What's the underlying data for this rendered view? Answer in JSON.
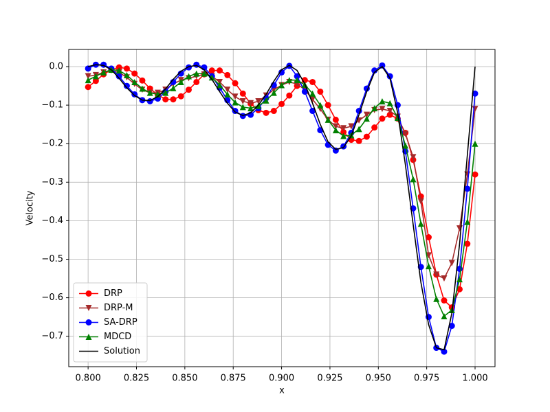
{
  "chart_data": {
    "type": "line",
    "xlabel": "x",
    "ylabel": "Velocity",
    "x": [
      0.8,
      0.804,
      0.808,
      0.812,
      0.816,
      0.82,
      0.824,
      0.828,
      0.832,
      0.836,
      0.84,
      0.844,
      0.848,
      0.852,
      0.856,
      0.86,
      0.864,
      0.868,
      0.872,
      0.876,
      0.88,
      0.884,
      0.888,
      0.892,
      0.896,
      0.9,
      0.904,
      0.908,
      0.912,
      0.916,
      0.92,
      0.924,
      0.928,
      0.932,
      0.936,
      0.94,
      0.944,
      0.948,
      0.952,
      0.956,
      0.96,
      0.964,
      0.968,
      0.972,
      0.976,
      0.98,
      0.984,
      0.988,
      0.992,
      0.996,
      1.0
    ],
    "series": [
      {
        "name": "DRP",
        "color": "#ff0000",
        "marker": "circle",
        "values": [
          -0.053,
          -0.037,
          -0.02,
          -0.008,
          -0.002,
          -0.005,
          -0.018,
          -0.036,
          -0.057,
          -0.073,
          -0.085,
          -0.085,
          -0.077,
          -0.06,
          -0.04,
          -0.02,
          -0.01,
          -0.01,
          -0.022,
          -0.043,
          -0.07,
          -0.096,
          -0.113,
          -0.12,
          -0.115,
          -0.097,
          -0.075,
          -0.05,
          -0.035,
          -0.04,
          -0.065,
          -0.1,
          -0.138,
          -0.17,
          -0.19,
          -0.193,
          -0.182,
          -0.158,
          -0.135,
          -0.125,
          -0.135,
          -0.172,
          -0.242,
          -0.337,
          -0.443,
          -0.54,
          -0.607,
          -0.625,
          -0.578,
          -0.46,
          -0.28
        ]
      },
      {
        "name": "DRP-M",
        "color": "#a52a2a",
        "marker": "triangle-down",
        "values": [
          -0.025,
          -0.022,
          -0.015,
          -0.01,
          -0.015,
          -0.028,
          -0.045,
          -0.06,
          -0.068,
          -0.068,
          -0.06,
          -0.045,
          -0.035,
          -0.03,
          -0.025,
          -0.02,
          -0.025,
          -0.04,
          -0.06,
          -0.078,
          -0.09,
          -0.095,
          -0.09,
          -0.075,
          -0.06,
          -0.048,
          -0.04,
          -0.045,
          -0.06,
          -0.085,
          -0.11,
          -0.138,
          -0.155,
          -0.16,
          -0.155,
          -0.14,
          -0.125,
          -0.113,
          -0.11,
          -0.115,
          -0.13,
          -0.175,
          -0.235,
          -0.35,
          -0.49,
          -0.54,
          -0.55,
          -0.51,
          -0.42,
          -0.28,
          -0.11
        ]
      },
      {
        "name": "SA-DRP",
        "color": "#0000ff",
        "marker": "circle",
        "values": [
          -0.005,
          0.005,
          0.005,
          -0.005,
          -0.025,
          -0.05,
          -0.072,
          -0.087,
          -0.09,
          -0.083,
          -0.065,
          -0.04,
          -0.018,
          -0.002,
          0.005,
          -0.002,
          -0.025,
          -0.055,
          -0.087,
          -0.115,
          -0.128,
          -0.125,
          -0.108,
          -0.082,
          -0.048,
          -0.015,
          0.002,
          -0.025,
          -0.065,
          -0.115,
          -0.165,
          -0.203,
          -0.218,
          -0.207,
          -0.172,
          -0.115,
          -0.057,
          -0.01,
          0.003,
          -0.025,
          -0.1,
          -0.22,
          -0.368,
          -0.52,
          -0.65,
          -0.73,
          -0.74,
          -0.673,
          -0.525,
          -0.317,
          -0.07
        ]
      },
      {
        "name": "MDCD",
        "color": "#008000",
        "marker": "triangle-up",
        "values": [
          -0.035,
          -0.025,
          -0.015,
          -0.008,
          -0.01,
          -0.022,
          -0.04,
          -0.057,
          -0.068,
          -0.072,
          -0.068,
          -0.056,
          -0.04,
          -0.025,
          -0.018,
          -0.018,
          -0.028,
          -0.048,
          -0.072,
          -0.093,
          -0.105,
          -0.108,
          -0.102,
          -0.088,
          -0.068,
          -0.048,
          -0.035,
          -0.035,
          -0.047,
          -0.07,
          -0.1,
          -0.138,
          -0.165,
          -0.18,
          -0.178,
          -0.162,
          -0.135,
          -0.108,
          -0.09,
          -0.095,
          -0.133,
          -0.205,
          -0.292,
          -0.408,
          -0.518,
          -0.603,
          -0.648,
          -0.632,
          -0.552,
          -0.403,
          -0.2
        ]
      },
      {
        "name": "Solution",
        "color": "#000000",
        "marker": "none",
        "values": [
          0.0,
          0.005,
          0.003,
          -0.008,
          -0.03,
          -0.055,
          -0.075,
          -0.087,
          -0.088,
          -0.078,
          -0.058,
          -0.033,
          -0.012,
          0.0,
          0.003,
          -0.008,
          -0.033,
          -0.065,
          -0.095,
          -0.118,
          -0.127,
          -0.12,
          -0.1,
          -0.072,
          -0.038,
          -0.008,
          0.003,
          -0.01,
          -0.045,
          -0.095,
          -0.15,
          -0.195,
          -0.215,
          -0.21,
          -0.18,
          -0.125,
          -0.065,
          -0.015,
          0.0,
          -0.03,
          -0.12,
          -0.255,
          -0.41,
          -0.56,
          -0.67,
          -0.73,
          -0.735,
          -0.64,
          -0.46,
          -0.23,
          0.0
        ]
      }
    ],
    "xlim": [
      0.79,
      1.0103
    ],
    "ylim": [
      -0.779,
      0.0446
    ],
    "xticks": [
      {
        "value": 0.8,
        "label": "0.800"
      },
      {
        "value": 0.825,
        "label": "0.825"
      },
      {
        "value": 0.85,
        "label": "0.850"
      },
      {
        "value": 0.875,
        "label": "0.875"
      },
      {
        "value": 0.9,
        "label": "0.900"
      },
      {
        "value": 0.925,
        "label": "0.925"
      },
      {
        "value": 0.95,
        "label": "0.950"
      },
      {
        "value": 0.975,
        "label": "0.975"
      },
      {
        "value": 1.0,
        "label": "1.000"
      }
    ],
    "yticks": [
      {
        "value": -0.7,
        "label": "−0.7"
      },
      {
        "value": -0.6,
        "label": "−0.6"
      },
      {
        "value": -0.5,
        "label": "−0.5"
      },
      {
        "value": -0.4,
        "label": "−0.4"
      },
      {
        "value": -0.3,
        "label": "−0.3"
      },
      {
        "value": -0.2,
        "label": "−0.2"
      },
      {
        "value": -0.1,
        "label": "−0.1"
      },
      {
        "value": 0.0,
        "label": "0.0"
      }
    ],
    "grid": true,
    "legend": "lower left"
  }
}
